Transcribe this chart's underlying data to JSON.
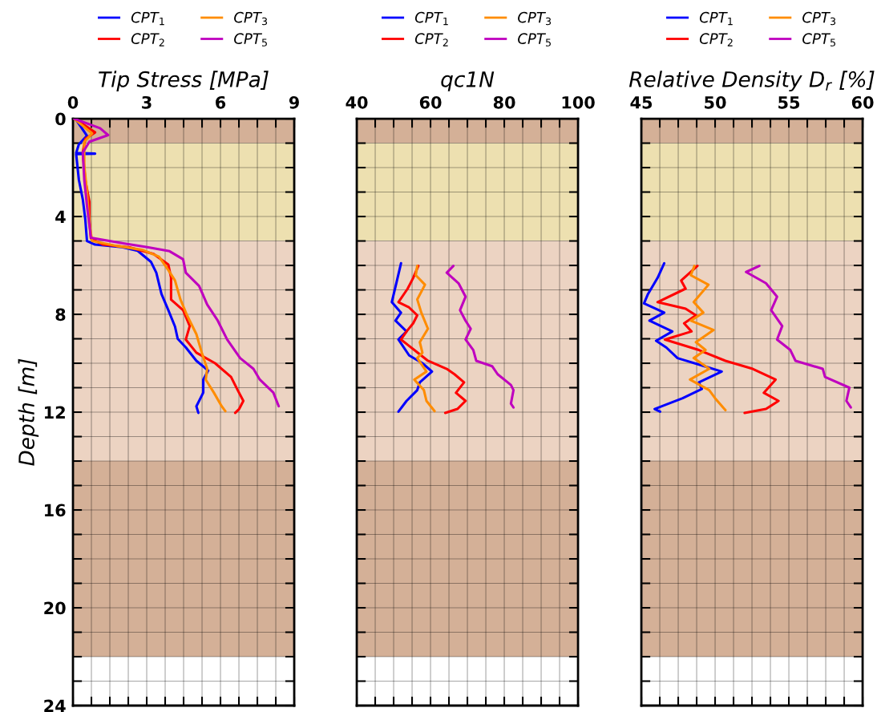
{
  "chart_data": [
    {
      "type": "line",
      "xlabel": "Tip Stress [MPa]",
      "ylabel": "Depth [m]",
      "legend": "top",
      "grid": true,
      "xlim": [
        0,
        9
      ],
      "xticks": [
        0,
        {
          "value": 0.75,
          "label": null
        },
        {
          "value": 1.5,
          "label": null
        },
        {
          "value": 2.25,
          "label": null
        },
        3,
        {
          "value": 3.75,
          "label": null
        },
        {
          "value": 4.5,
          "label": null
        },
        {
          "value": 5.25,
          "label": null
        },
        6,
        {
          "value": 6.75,
          "label": null
        },
        {
          "value": 7.5,
          "label": null
        },
        {
          "value": 8.25,
          "label": null
        },
        9
      ],
      "ylim": [
        24,
        0
      ],
      "yticks": [
        0,
        {
          "value": 1,
          "label": null
        },
        {
          "value": 2,
          "label": null
        },
        {
          "value": 3,
          "label": null
        },
        4,
        {
          "value": 5,
          "label": null
        },
        {
          "value": 6,
          "label": null
        },
        {
          "value": 7,
          "label": null
        },
        8,
        {
          "value": 9,
          "label": null
        },
        {
          "value": 10,
          "label": null
        },
        {
          "value": 11,
          "label": null
        },
        12,
        {
          "value": 13,
          "label": null
        },
        {
          "value": 14,
          "label": null
        },
        {
          "value": 15,
          "label": null
        },
        16,
        {
          "value": 17,
          "label": null
        },
        {
          "value": 18,
          "label": null
        },
        {
          "value": 19,
          "label": null
        },
        20,
        {
          "value": 21,
          "label": null
        },
        {
          "value": 22,
          "label": null
        },
        {
          "value": 23,
          "label": null
        },
        24
      ],
      "bands": [
        {
          "axis": "y",
          "from": 0,
          "to": 1,
          "color": "#d4b097"
        },
        {
          "axis": "y",
          "from": 1,
          "to": 5,
          "color": "#ede0b0"
        },
        {
          "axis": "y",
          "from": 5,
          "to": 14,
          "color": "#ecd3c2"
        },
        {
          "axis": "y",
          "from": 14,
          "to": 22,
          "color": "#d4b097"
        }
      ],
      "series": [
        {
          "name": "CPT$_{1}$",
          "color": "#0000ff",
          "x": [
            0.1,
            0.57,
            0.24,
            0.13,
            0.9,
            0.13,
            0.24,
            0.4,
            0.5,
            0.57,
            0.9,
            2.0,
            2.63,
            3.17,
            3.39,
            3.6,
            3.88,
            4.15,
            4.26,
            4.59,
            5.02,
            5.5,
            5.3,
            5.3,
            5.02,
            5.1
          ],
          "values": [
            0,
            0.7,
            1.05,
            1.4,
            1.43,
            1.45,
            2.5,
            3.3,
            4.1,
            5.0,
            5.15,
            5.25,
            5.4,
            5.85,
            6.3,
            7.17,
            7.83,
            8.5,
            9.0,
            9.35,
            9.9,
            10.3,
            10.67,
            11.2,
            11.76,
            12.03
          ]
        },
        {
          "name": "CPT$_{2}$",
          "color": "#ff0000",
          "x": [
            0.07,
            0.9,
            0.5,
            0.4,
            0.5,
            0.67,
            0.67,
            0.73,
            1.22,
            2.3,
            3.28,
            3.88,
            3.99,
            3.99,
            4.48,
            4.75,
            4.59,
            5.02,
            5.78,
            6.43,
            6.7,
            6.93,
            6.76,
            6.6
          ],
          "values": [
            0,
            0.56,
            0.83,
            1.38,
            2.5,
            3.4,
            4.1,
            4.9,
            5.15,
            5.26,
            5.53,
            5.97,
            6.5,
            7.4,
            7.83,
            8.48,
            9.03,
            9.57,
            10.0,
            10.56,
            11.1,
            11.54,
            11.87,
            12.03
          ]
        },
        {
          "name": "CPT$_{3}$",
          "color": "#ff8c00",
          "x": [
            0.05,
            0.78,
            0.46,
            0.46,
            0.57,
            0.67,
            0.78,
            1.76,
            2.85,
            3.5,
            3.88,
            4.15,
            4.37,
            4.64,
            5.02,
            5.24,
            5.46,
            5.4,
            5.73,
            6.05,
            6.2
          ],
          "values": [
            0,
            0.6,
            0.94,
            1.92,
            3.0,
            4.33,
            5.0,
            5.2,
            5.37,
            5.64,
            6.19,
            6.62,
            7.39,
            8.04,
            8.81,
            9.57,
            10.23,
            10.67,
            11.2,
            11.76,
            11.96
          ]
        },
        {
          "name": "CPT$_{5}$",
          "color": "#bf00bf",
          "x": [
            0.05,
            1.1,
            1.43,
            0.67,
            0.4,
            0.46,
            0.57,
            0.73,
            2.0,
            3.07,
            3.93,
            4.48,
            4.59,
            5.13,
            5.46,
            5.89,
            6.27,
            6.8,
            7.34,
            7.6,
            8.15,
            8.37
          ],
          "values": [
            0,
            0.39,
            0.67,
            0.94,
            1.38,
            2.5,
            3.56,
            4.87,
            5.09,
            5.26,
            5.42,
            5.75,
            6.3,
            6.84,
            7.6,
            8.26,
            9.03,
            9.79,
            10.23,
            10.67,
            11.2,
            11.76
          ]
        }
      ]
    },
    {
      "type": "line",
      "xlabel": "qc1N",
      "legend": "top",
      "grid": true,
      "tick_labels": "x",
      "xlim": [
        40,
        100
      ],
      "xticks": [
        40,
        {
          "value": 45,
          "label": null
        },
        {
          "value": 50,
          "label": null
        },
        {
          "value": 55,
          "label": null
        },
        60,
        {
          "value": 65,
          "label": null
        },
        {
          "value": 70,
          "label": null
        },
        {
          "value": 75,
          "label": null
        },
        80,
        {
          "value": 85,
          "label": null
        },
        {
          "value": 90,
          "label": null
        },
        {
          "value": 95,
          "label": null
        },
        100
      ],
      "ylim": [
        24,
        0
      ],
      "yticks": [
        0,
        {
          "value": 1,
          "label": null
        },
        {
          "value": 2,
          "label": null
        },
        {
          "value": 3,
          "label": null
        },
        4,
        {
          "value": 5,
          "label": null
        },
        {
          "value": 6,
          "label": null
        },
        {
          "value": 7,
          "label": null
        },
        8,
        {
          "value": 9,
          "label": null
        },
        {
          "value": 10,
          "label": null
        },
        {
          "value": 11,
          "label": null
        },
        12,
        {
          "value": 13,
          "label": null
        },
        {
          "value": 14,
          "label": null
        },
        {
          "value": 15,
          "label": null
        },
        16,
        {
          "value": 17,
          "label": null
        },
        {
          "value": 18,
          "label": null
        },
        {
          "value": 19,
          "label": null
        },
        20,
        {
          "value": 21,
          "label": null
        },
        {
          "value": 22,
          "label": null
        },
        {
          "value": 23,
          "label": null
        },
        24
      ],
      "bands": [
        {
          "axis": "y",
          "from": 0,
          "to": 1,
          "color": "#d4b097"
        },
        {
          "axis": "y",
          "from": 1,
          "to": 5,
          "color": "#ede0b0"
        },
        {
          "axis": "y",
          "from": 5,
          "to": 14,
          "color": "#ecd3c2"
        },
        {
          "axis": "y",
          "from": 14,
          "to": 22,
          "color": "#d4b097"
        }
      ],
      "series": [
        {
          "name": "CPT$_{1}$",
          "color": "#0000ff",
          "x": [
            52.0,
            50.9,
            49.5,
            52.0,
            50.5,
            53.5,
            51.3,
            54.2,
            57.8,
            60.4,
            57.1,
            56.4,
            53.5,
            51.3
          ],
          "values": [
            5.91,
            6.62,
            7.5,
            7.93,
            8.26,
            8.7,
            9.03,
            9.68,
            10.0,
            10.34,
            10.78,
            11.1,
            11.54,
            11.98
          ]
        },
        {
          "name": "CPT$_{2}$",
          "color": "#ff0000",
          "x": [
            56.7,
            55.3,
            53.8,
            51.3,
            54.2,
            56.4,
            55.3,
            53.5,
            52.0,
            55.6,
            59.3,
            64.4,
            66.5,
            69.1,
            66.9,
            69.5,
            67.3,
            64.0
          ],
          "values": [
            6.02,
            6.51,
            6.95,
            7.5,
            7.72,
            8.04,
            8.37,
            8.7,
            9.03,
            9.46,
            9.9,
            10.23,
            10.45,
            10.78,
            11.21,
            11.54,
            11.87,
            12.03
          ]
        },
        {
          "name": "CPT$_{3}$",
          "color": "#ff8c00",
          "x": [
            56.4,
            56.0,
            58.5,
            56.4,
            57.5,
            59.3,
            57.1,
            57.8,
            56.4,
            58.9,
            55.6,
            58.2,
            58.9,
            61.1
          ],
          "values": [
            6.02,
            6.4,
            6.79,
            7.39,
            7.93,
            8.59,
            9.14,
            9.57,
            9.79,
            10.34,
            10.67,
            11.1,
            11.54,
            11.96
          ]
        },
        {
          "name": "CPT$_{5}$",
          "color": "#bf00bf",
          "x": [
            66.2,
            64.4,
            67.6,
            69.5,
            68.0,
            69.5,
            70.9,
            69.5,
            71.6,
            72.4,
            76.7,
            78.2,
            81.8,
            82.5,
            81.8,
            82.5
          ],
          "values": [
            6.02,
            6.3,
            6.73,
            7.28,
            7.83,
            8.26,
            8.59,
            9.03,
            9.46,
            9.9,
            10.12,
            10.45,
            10.89,
            11.1,
            11.65,
            11.81
          ]
        }
      ]
    },
    {
      "type": "line",
      "xlabel": "Relative Density D$_{r}$ [%]",
      "legend": "top",
      "grid": true,
      "tick_labels": "x",
      "xlim": [
        45,
        60
      ],
      "xticks": [
        45,
        {
          "value": 46.25,
          "label": null
        },
        {
          "value": 47.5,
          "label": null
        },
        {
          "value": 48.75,
          "label": null
        },
        50,
        {
          "value": 51.25,
          "label": null
        },
        {
          "value": 52.5,
          "label": null
        },
        {
          "value": 53.75,
          "label": null
        },
        55,
        {
          "value": 56.25,
          "label": null
        },
        {
          "value": 57.5,
          "label": null
        },
        {
          "value": 58.75,
          "label": null
        },
        60
      ],
      "ylim": [
        24,
        0
      ],
      "yticks": [
        0,
        {
          "value": 1,
          "label": null
        },
        {
          "value": 2,
          "label": null
        },
        {
          "value": 3,
          "label": null
        },
        4,
        {
          "value": 5,
          "label": null
        },
        {
          "value": 6,
          "label": null
        },
        {
          "value": 7,
          "label": null
        },
        8,
        {
          "value": 9,
          "label": null
        },
        {
          "value": 10,
          "label": null
        },
        {
          "value": 11,
          "label": null
        },
        12,
        {
          "value": 13,
          "label": null
        },
        {
          "value": 14,
          "label": null
        },
        {
          "value": 15,
          "label": null
        },
        16,
        {
          "value": 17,
          "label": null
        },
        {
          "value": 18,
          "label": null
        },
        {
          "value": 19,
          "label": null
        },
        20,
        {
          "value": 21,
          "label": null
        },
        {
          "value": 22,
          "label": null
        },
        {
          "value": 23,
          "label": null
        },
        24
      ],
      "bands": [
        {
          "axis": "y",
          "from": 0,
          "to": 1,
          "color": "#d4b097"
        },
        {
          "axis": "y",
          "from": 1,
          "to": 5,
          "color": "#ede0b0"
        },
        {
          "axis": "y",
          "from": 5,
          "to": 14,
          "color": "#ecd3c2"
        },
        {
          "axis": "y",
          "from": 14,
          "to": 22,
          "color": "#d4b097"
        }
      ],
      "series": [
        {
          "name": "CPT$_{1}$",
          "color": "#0000ff",
          "x": [
            46.55,
            46.1,
            45.45,
            45.18,
            46.55,
            45.55,
            47.1,
            46.0,
            46.7,
            47.45,
            49.27,
            50.45,
            48.9,
            49.1,
            47.8,
            45.9,
            46.27
          ],
          "values": [
            5.91,
            6.51,
            7.17,
            7.55,
            7.93,
            8.26,
            8.7,
            9.08,
            9.36,
            9.79,
            10.12,
            10.34,
            10.78,
            11.05,
            11.43,
            11.87,
            11.98
          ]
        },
        {
          "name": "CPT$_{2}$",
          "color": "#ff0000",
          "x": [
            48.8,
            47.7,
            48.0,
            46.1,
            48.0,
            48.7,
            47.9,
            48.4,
            46.6,
            48.9,
            50.7,
            52.55,
            54.1,
            53.3,
            54.3,
            53.45,
            52.0
          ],
          "values": [
            6.02,
            6.62,
            6.95,
            7.5,
            7.77,
            8.04,
            8.37,
            8.7,
            9.03,
            9.46,
            9.9,
            10.23,
            10.67,
            11.21,
            11.54,
            11.87,
            12.03
          ]
        },
        {
          "name": "CPT$_{3}$",
          "color": "#ff8c00",
          "x": [
            48.6,
            48.35,
            49.55,
            48.55,
            49.2,
            48.35,
            49.9,
            48.7,
            49.35,
            48.55,
            49.6,
            48.3,
            49.6,
            50.0,
            50.7
          ],
          "values": [
            6.02,
            6.4,
            6.79,
            7.5,
            7.93,
            8.26,
            8.64,
            9.14,
            9.46,
            9.79,
            10.23,
            10.67,
            11.1,
            11.43,
            11.92
          ]
        },
        {
          "name": "CPT$_{5}$",
          "color": "#bf00bf",
          "x": [
            53.0,
            52.1,
            53.45,
            54.2,
            53.8,
            54.55,
            54.2,
            55.1,
            55.45,
            57.3,
            57.45,
            59.1,
            58.9,
            59.2
          ],
          "values": [
            6.02,
            6.27,
            6.73,
            7.28,
            7.83,
            8.48,
            9.03,
            9.46,
            9.9,
            10.23,
            10.56,
            11.0,
            11.54,
            11.81
          ]
        }
      ]
    }
  ]
}
